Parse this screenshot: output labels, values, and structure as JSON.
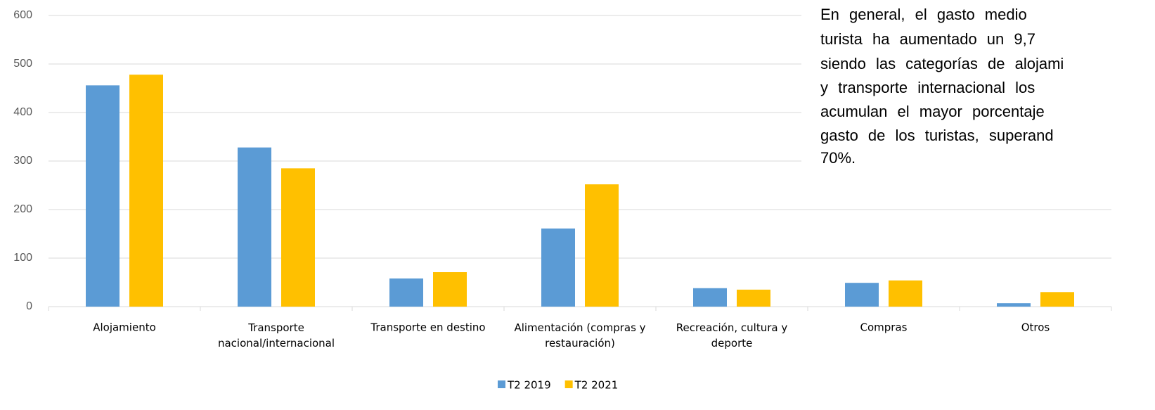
{
  "chart_data": {
    "type": "bar",
    "categories": [
      "Alojamiento",
      "Transporte nacional/internacional",
      "Transporte en destino",
      "Alimentación (compras y restauración)",
      "Recreación, cultura y deporte",
      "Compras",
      "Otros"
    ],
    "series": [
      {
        "name": "T2 2019",
        "color": "#5b9bd5",
        "values": [
          456,
          328,
          58,
          161,
          38,
          49,
          7
        ]
      },
      {
        "name": "T2 2021",
        "color": "#ffc000",
        "values": [
          478,
          285,
          71,
          252,
          35,
          54,
          30
        ]
      }
    ],
    "ylim": [
      0,
      600
    ],
    "yticks": [
      0,
      100,
      200,
      300,
      400,
      500,
      600
    ],
    "grid": true,
    "legend": "bottom",
    "annotation": [
      "En general, el gasto medio",
      "turista ha aumentado un 9,7",
      "siendo las categorías de alojami",
      "y transporte internacional los",
      "acumulan el mayor porcentaje",
      "gasto de los turistas, superand",
      "70%."
    ]
  }
}
